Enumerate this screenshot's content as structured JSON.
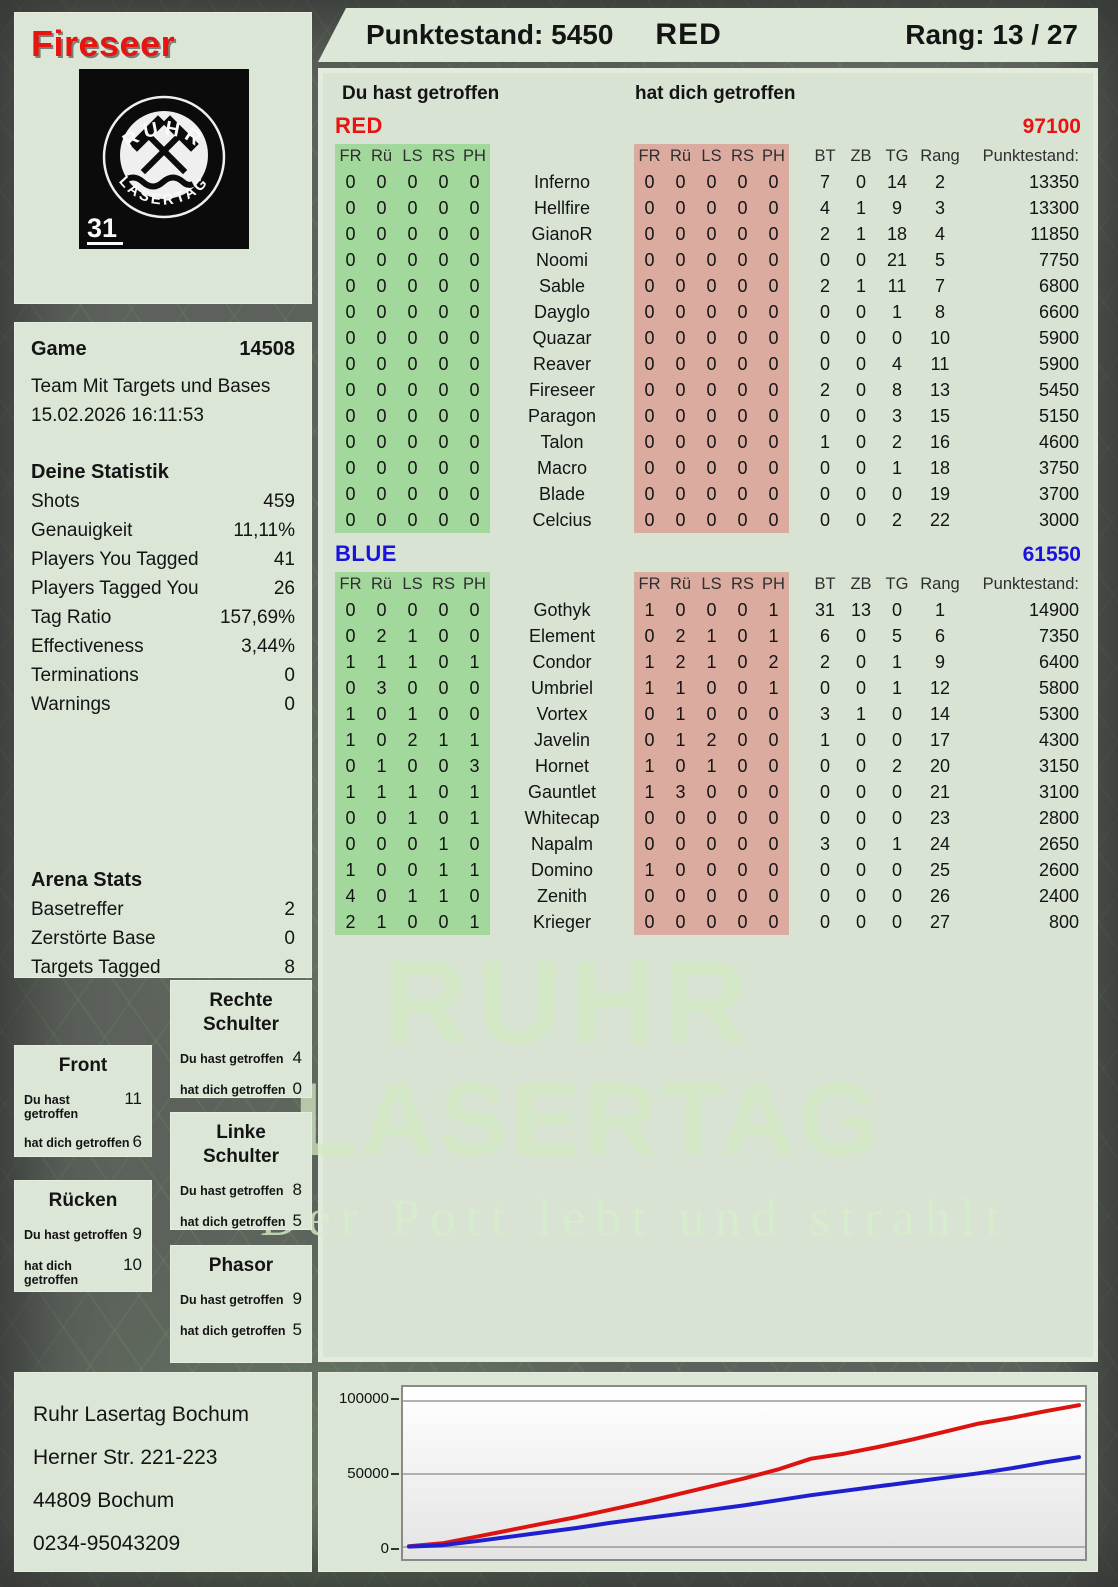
{
  "header": {
    "player_name": "Fireseer",
    "score": "Punktestand: 5450",
    "team": "RED",
    "rank": "Rang: 13 / 27"
  },
  "logo": {
    "line1": "RUHR",
    "line2": "LASERTAG",
    "number": "31"
  },
  "sidebar": {
    "game": {
      "label": "Game",
      "number": "14508",
      "mode": "Team Mit Targets und Bases",
      "datetime": "15.02.2026 16:11:53"
    },
    "stats": {
      "title": "Deine Statistik",
      "rows": [
        {
          "label": "Shots",
          "value": "459"
        },
        {
          "label": "Genauigkeit",
          "value": "11,11%"
        },
        {
          "label": "Players You Tagged",
          "value": "41"
        },
        {
          "label": "Players Tagged You",
          "value": "26"
        },
        {
          "label": "Tag Ratio",
          "value": "157,69%"
        },
        {
          "label": "Effectiveness",
          "value": "3,44%"
        },
        {
          "label": "Terminations",
          "value": "0"
        },
        {
          "label": "Warnings",
          "value": "0"
        }
      ]
    },
    "arena": {
      "title": "Arena Stats",
      "rows": [
        {
          "label": "Basetreffer",
          "value": "2"
        },
        {
          "label": "Zerstörte Base",
          "value": "0"
        },
        {
          "label": "Targets Tagged",
          "value": "8"
        }
      ]
    }
  },
  "hit_labels": {
    "you": "Du hast getroffen",
    "them": "hat dich getroffen"
  },
  "hit_boxes": [
    {
      "title": "Rechte Schulter",
      "you": "4",
      "them": "0"
    },
    {
      "title": "Front",
      "you": "11",
      "them": "6"
    },
    {
      "title": "Linke Schulter",
      "you": "8",
      "them": "5"
    },
    {
      "title": "Rücken",
      "you": "9",
      "them": "10"
    },
    {
      "title": "Phasor",
      "you": "9",
      "them": "5"
    }
  ],
  "table": {
    "you_header": "Du hast getroffen",
    "them_header": "hat dich getroffen",
    "hit_cols": [
      "FR",
      "Rü",
      "LS",
      "RS",
      "PH"
    ],
    "stat_cols": [
      "BT",
      "ZB",
      "TG",
      "Rang",
      "Punktestand:"
    ],
    "teams": [
      {
        "name": "RED",
        "color": "#e81410",
        "total": "97100",
        "rows": [
          {
            "you": [
              0,
              0,
              0,
              0,
              0
            ],
            "name": "Inferno",
            "them": [
              0,
              0,
              0,
              0,
              0
            ],
            "bt": 7,
            "zb": 0,
            "tg": 14,
            "rang": 2,
            "punkte": "13350"
          },
          {
            "you": [
              0,
              0,
              0,
              0,
              0
            ],
            "name": "Hellfire",
            "them": [
              0,
              0,
              0,
              0,
              0
            ],
            "bt": 4,
            "zb": 1,
            "tg": 9,
            "rang": 3,
            "punkte": "13300"
          },
          {
            "you": [
              0,
              0,
              0,
              0,
              0
            ],
            "name": "GianoR",
            "them": [
              0,
              0,
              0,
              0,
              0
            ],
            "bt": 2,
            "zb": 1,
            "tg": 18,
            "rang": 4,
            "punkte": "11850"
          },
          {
            "you": [
              0,
              0,
              0,
              0,
              0
            ],
            "name": "Noomi",
            "them": [
              0,
              0,
              0,
              0,
              0
            ],
            "bt": 0,
            "zb": 0,
            "tg": 21,
            "rang": 5,
            "punkte": "7750"
          },
          {
            "you": [
              0,
              0,
              0,
              0,
              0
            ],
            "name": "Sable",
            "them": [
              0,
              0,
              0,
              0,
              0
            ],
            "bt": 2,
            "zb": 1,
            "tg": 11,
            "rang": 7,
            "punkte": "6800"
          },
          {
            "you": [
              0,
              0,
              0,
              0,
              0
            ],
            "name": "Dayglo",
            "them": [
              0,
              0,
              0,
              0,
              0
            ],
            "bt": 0,
            "zb": 0,
            "tg": 1,
            "rang": 8,
            "punkte": "6600"
          },
          {
            "you": [
              0,
              0,
              0,
              0,
              0
            ],
            "name": "Quazar",
            "them": [
              0,
              0,
              0,
              0,
              0
            ],
            "bt": 0,
            "zb": 0,
            "tg": 0,
            "rang": 10,
            "punkte": "5900"
          },
          {
            "you": [
              0,
              0,
              0,
              0,
              0
            ],
            "name": "Reaver",
            "them": [
              0,
              0,
              0,
              0,
              0
            ],
            "bt": 0,
            "zb": 0,
            "tg": 4,
            "rang": 11,
            "punkte": "5900"
          },
          {
            "you": [
              0,
              0,
              0,
              0,
              0
            ],
            "name": "Fireseer",
            "them": [
              0,
              0,
              0,
              0,
              0
            ],
            "bt": 2,
            "zb": 0,
            "tg": 8,
            "rang": 13,
            "punkte": "5450"
          },
          {
            "you": [
              0,
              0,
              0,
              0,
              0
            ],
            "name": "Paragon",
            "them": [
              0,
              0,
              0,
              0,
              0
            ],
            "bt": 0,
            "zb": 0,
            "tg": 3,
            "rang": 15,
            "punkte": "5150"
          },
          {
            "you": [
              0,
              0,
              0,
              0,
              0
            ],
            "name": "Talon",
            "them": [
              0,
              0,
              0,
              0,
              0
            ],
            "bt": 1,
            "zb": 0,
            "tg": 2,
            "rang": 16,
            "punkte": "4600"
          },
          {
            "you": [
              0,
              0,
              0,
              0,
              0
            ],
            "name": "Macro",
            "them": [
              0,
              0,
              0,
              0,
              0
            ],
            "bt": 0,
            "zb": 0,
            "tg": 1,
            "rang": 18,
            "punkte": "3750"
          },
          {
            "you": [
              0,
              0,
              0,
              0,
              0
            ],
            "name": "Blade",
            "them": [
              0,
              0,
              0,
              0,
              0
            ],
            "bt": 0,
            "zb": 0,
            "tg": 0,
            "rang": 19,
            "punkte": "3700"
          },
          {
            "you": [
              0,
              0,
              0,
              0,
              0
            ],
            "name": "Celcius",
            "them": [
              0,
              0,
              0,
              0,
              0
            ],
            "bt": 0,
            "zb": 0,
            "tg": 2,
            "rang": 22,
            "punkte": "3000"
          }
        ]
      },
      {
        "name": "BLUE",
        "color": "#1a12e0",
        "total": "61550",
        "rows": [
          {
            "you": [
              0,
              0,
              0,
              0,
              0
            ],
            "name": "Gothyk",
            "them": [
              1,
              0,
              0,
              0,
              1
            ],
            "bt": 31,
            "zb": 13,
            "tg": 0,
            "rang": 1,
            "punkte": "14900"
          },
          {
            "you": [
              0,
              2,
              1,
              0,
              0
            ],
            "name": "Element",
            "them": [
              0,
              2,
              1,
              0,
              1
            ],
            "bt": 6,
            "zb": 0,
            "tg": 5,
            "rang": 6,
            "punkte": "7350"
          },
          {
            "you": [
              1,
              1,
              1,
              0,
              1
            ],
            "name": "Condor",
            "them": [
              1,
              2,
              1,
              0,
              2
            ],
            "bt": 2,
            "zb": 0,
            "tg": 1,
            "rang": 9,
            "punkte": "6400"
          },
          {
            "you": [
              0,
              3,
              0,
              0,
              0
            ],
            "name": "Umbriel",
            "them": [
              1,
              1,
              0,
              0,
              1
            ],
            "bt": 0,
            "zb": 0,
            "tg": 1,
            "rang": 12,
            "punkte": "5800"
          },
          {
            "you": [
              1,
              0,
              1,
              0,
              0
            ],
            "name": "Vortex",
            "them": [
              0,
              1,
              0,
              0,
              0
            ],
            "bt": 3,
            "zb": 1,
            "tg": 0,
            "rang": 14,
            "punkte": "5300"
          },
          {
            "you": [
              1,
              0,
              2,
              1,
              1
            ],
            "name": "Javelin",
            "them": [
              0,
              1,
              2,
              0,
              0
            ],
            "bt": 1,
            "zb": 0,
            "tg": 0,
            "rang": 17,
            "punkte": "4300"
          },
          {
            "you": [
              0,
              1,
              0,
              0,
              3
            ],
            "name": "Hornet",
            "them": [
              1,
              0,
              1,
              0,
              0
            ],
            "bt": 0,
            "zb": 0,
            "tg": 2,
            "rang": 20,
            "punkte": "3150"
          },
          {
            "you": [
              1,
              1,
              1,
              0,
              1
            ],
            "name": "Gauntlet",
            "them": [
              1,
              3,
              0,
              0,
              0
            ],
            "bt": 0,
            "zb": 0,
            "tg": 0,
            "rang": 21,
            "punkte": "3100"
          },
          {
            "you": [
              0,
              0,
              1,
              0,
              1
            ],
            "name": "Whitecap",
            "them": [
              0,
              0,
              0,
              0,
              0
            ],
            "bt": 0,
            "zb": 0,
            "tg": 0,
            "rang": 23,
            "punkte": "2800"
          },
          {
            "you": [
              0,
              0,
              0,
              1,
              0
            ],
            "name": "Napalm",
            "them": [
              0,
              0,
              0,
              0,
              0
            ],
            "bt": 3,
            "zb": 0,
            "tg": 1,
            "rang": 24,
            "punkte": "2650"
          },
          {
            "you": [
              1,
              0,
              0,
              1,
              1
            ],
            "name": "Domino",
            "them": [
              1,
              0,
              0,
              0,
              0
            ],
            "bt": 0,
            "zb": 0,
            "tg": 0,
            "rang": 25,
            "punkte": "2600"
          },
          {
            "you": [
              4,
              0,
              1,
              1,
              0
            ],
            "name": "Zenith",
            "them": [
              0,
              0,
              0,
              0,
              0
            ],
            "bt": 0,
            "zb": 0,
            "tg": 0,
            "rang": 26,
            "punkte": "2400"
          },
          {
            "you": [
              2,
              1,
              0,
              0,
              1
            ],
            "name": "Krieger",
            "them": [
              0,
              0,
              0,
              0,
              0
            ],
            "bt": 0,
            "zb": 0,
            "tg": 0,
            "rang": 27,
            "punkte": "800"
          }
        ]
      }
    ]
  },
  "watermark": {
    "line1": "RUHR",
    "line2": "LASERTAG",
    "tagline": "Der Pott lebt und strahlt"
  },
  "footer": {
    "address_lines": [
      "Ruhr Lasertag Bochum",
      "Herner Str. 221-223",
      "44809 Bochum",
      "0234-95043209"
    ]
  },
  "chart_data": {
    "type": "line",
    "title": "",
    "xlabel": "",
    "ylabel": "",
    "ylim": [
      0,
      100000
    ],
    "yticks": [
      0,
      50000,
      100000
    ],
    "ytick_labels": [
      "0",
      "50000",
      "100000"
    ],
    "grid": true,
    "legend_position": "none",
    "x_percent": [
      0,
      5,
      10,
      15,
      20,
      25,
      30,
      35,
      40,
      45,
      50,
      55,
      60,
      65,
      70,
      75,
      80,
      85,
      90,
      95,
      100
    ],
    "series": [
      {
        "name": "RED",
        "color": "#dc1410",
        "values": [
          500,
          2500,
          7000,
          11500,
          16000,
          20500,
          25500,
          30500,
          36000,
          41500,
          47000,
          53000,
          60500,
          64000,
          68500,
          73500,
          79000,
          84500,
          88500,
          93000,
          97100
        ]
      },
      {
        "name": "BLUE",
        "color": "#1f1fd0",
        "values": [
          300,
          1200,
          4000,
          7000,
          10000,
          13000,
          16500,
          19500,
          22500,
          25500,
          28500,
          32000,
          35500,
          38500,
          41500,
          44500,
          47500,
          50500,
          54000,
          58000,
          61550
        ]
      }
    ]
  }
}
